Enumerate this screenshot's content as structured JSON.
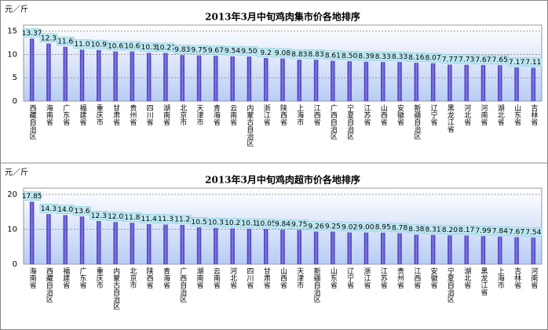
{
  "chart_data": [
    {
      "type": "bar",
      "title": "2013年3月中旬鸡肉集市价各地排序",
      "ylabel": "元／斤",
      "categories": [
        "西藏自治区",
        "海南省",
        "广东省",
        "福建省",
        "重庆市",
        "甘肃省",
        "贵州省",
        "四川省",
        "湖南省",
        "北京市",
        "天津市",
        "青海省",
        "云南省",
        "内蒙古自治区",
        "浙江省",
        "陕西省",
        "上海市",
        "江西省",
        "广西自治区",
        "宁夏自治区",
        "江苏省",
        "山西省",
        "安徽省",
        "新疆自治区",
        "辽宁省",
        "黑龙江省",
        "河北省",
        "河南省",
        "湖北省",
        "山东省",
        "吉林省"
      ],
      "values": [
        13.37,
        12.3,
        11.6,
        11.0,
        10.9,
        10.6,
        10.6,
        10.3,
        10.27,
        9.83,
        9.75,
        9.67,
        9.54,
        9.5,
        9.2,
        9.08,
        8.83,
        8.83,
        8.61,
        8.5,
        8.39,
        8.33,
        8.33,
        8.16,
        8.07,
        7.77,
        7.73,
        7.67,
        7.65,
        7.17,
        7.11
      ],
      "value_labels": [
        "13.37",
        "12.3",
        "11.6",
        "11.0",
        "10.9",
        "10.6",
        "10.6",
        "10.3",
        "10.27",
        "9.83",
        "9.75",
        "9.67",
        "9.54",
        "9.50",
        "9.2",
        "9.08",
        "8.83",
        "8.83",
        "8.61",
        "8.50",
        "8.39",
        "8.33",
        "8.33",
        "8.16",
        "8.07",
        "7.77",
        "7.73",
        "7.67",
        "7.65",
        "7.17",
        "7.11"
      ],
      "color": "#5b4fd0",
      "ylim": [
        0,
        16.3
      ],
      "yticks": [
        0,
        5,
        10,
        15
      ],
      "grid": true
    },
    {
      "type": "bar",
      "title": "2013年3月中旬鸡肉超市价各地排序",
      "ylabel": "元／斤",
      "categories": [
        "海南省",
        "西藏自治区",
        "福建省",
        "广东省",
        "重庆市",
        "内蒙古自治区",
        "北京市",
        "陕西省",
        "青海省",
        "广西自治区",
        "湖南省",
        "云南省",
        "河北省",
        "四川省",
        "甘肃省",
        "山西省",
        "天津市",
        "新疆自治区",
        "山东省",
        "辽宁省",
        "浙江省",
        "江苏省",
        "贵州省",
        "江西省",
        "安徽省",
        "宁夏自治区",
        "湖北省",
        "黑龙江省",
        "上海市",
        "吉林省",
        "河南省"
      ],
      "values": [
        17.85,
        14.3,
        14.0,
        13.6,
        12.3,
        12.0,
        11.8,
        11.4,
        11.3,
        11.2,
        10.5,
        10.3,
        10.2,
        10.1,
        10.05,
        9.84,
        9.75,
        9.26,
        9.25,
        9.02,
        9.0,
        8.95,
        8.78,
        8.38,
        8.31,
        8.2,
        8.17,
        7.99,
        7.84,
        7.67,
        7.54
      ],
      "value_labels": [
        "17.85",
        "14.3",
        "14.0",
        "13.6",
        "12.3",
        "12.0",
        "11.8",
        "11.4",
        "11.3",
        "11.2",
        "10.5",
        "10.3",
        "10.2",
        "10.1",
        "10.05",
        "9.84",
        "9.75",
        "9.26",
        "9.25",
        "9.02",
        "9.00",
        "8.95",
        "8.78",
        "8.38",
        "8.31",
        "8.20",
        "8.17",
        "7.99",
        "7.84",
        "7.67",
        "7.54"
      ],
      "color": "#5b4fd0",
      "ylim": [
        0,
        21.8
      ],
      "yticks": [
        0,
        10,
        20
      ],
      "grid": true
    }
  ]
}
